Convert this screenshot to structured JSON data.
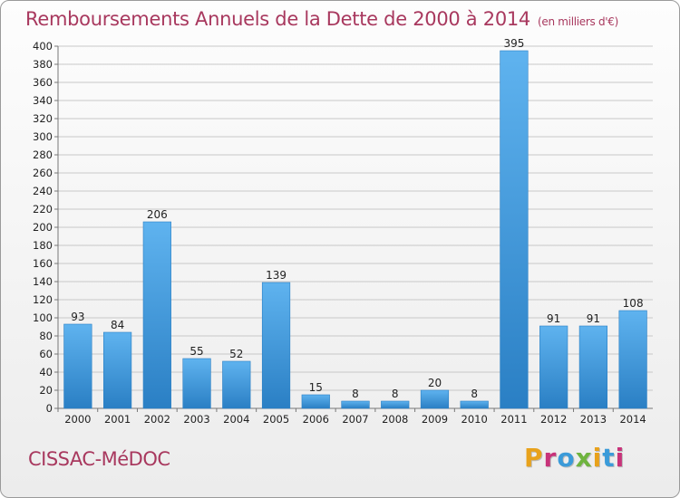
{
  "header": {
    "title": "Remboursements Annuels de la Dette de 2000 à 2014",
    "unit": "(en milliers d'€)"
  },
  "footer": {
    "commune": "CISSAC-MéDOC",
    "logo": {
      "letters": [
        "P",
        "r",
        "o",
        "x",
        "i",
        "t",
        "i"
      ],
      "colors": [
        "#e8a21c",
        "#c8337a",
        "#3b9bd9",
        "#6fb43f",
        "#e8a21c",
        "#3b9bd9",
        "#c8337a"
      ]
    }
  },
  "colors": {
    "title": "#a8385e",
    "bar_top": "#5fb3ef",
    "bar_bottom": "#2a7fc4",
    "gridline": "#c8c8c8"
  },
  "chart_data": {
    "type": "bar",
    "categories": [
      "2000",
      "2001",
      "2002",
      "2003",
      "2004",
      "2005",
      "2006",
      "2007",
      "2008",
      "2009",
      "2010",
      "2011",
      "2012",
      "2013",
      "2014"
    ],
    "values": [
      93,
      84,
      206,
      55,
      52,
      139,
      15,
      8,
      8,
      20,
      8,
      395,
      91,
      91,
      108
    ],
    "title": "Remboursements Annuels de la Dette de 2000 à 2014",
    "ylim": [
      0,
      400
    ],
    "ytick_step": 20,
    "grid": true,
    "data_labels": true
  }
}
